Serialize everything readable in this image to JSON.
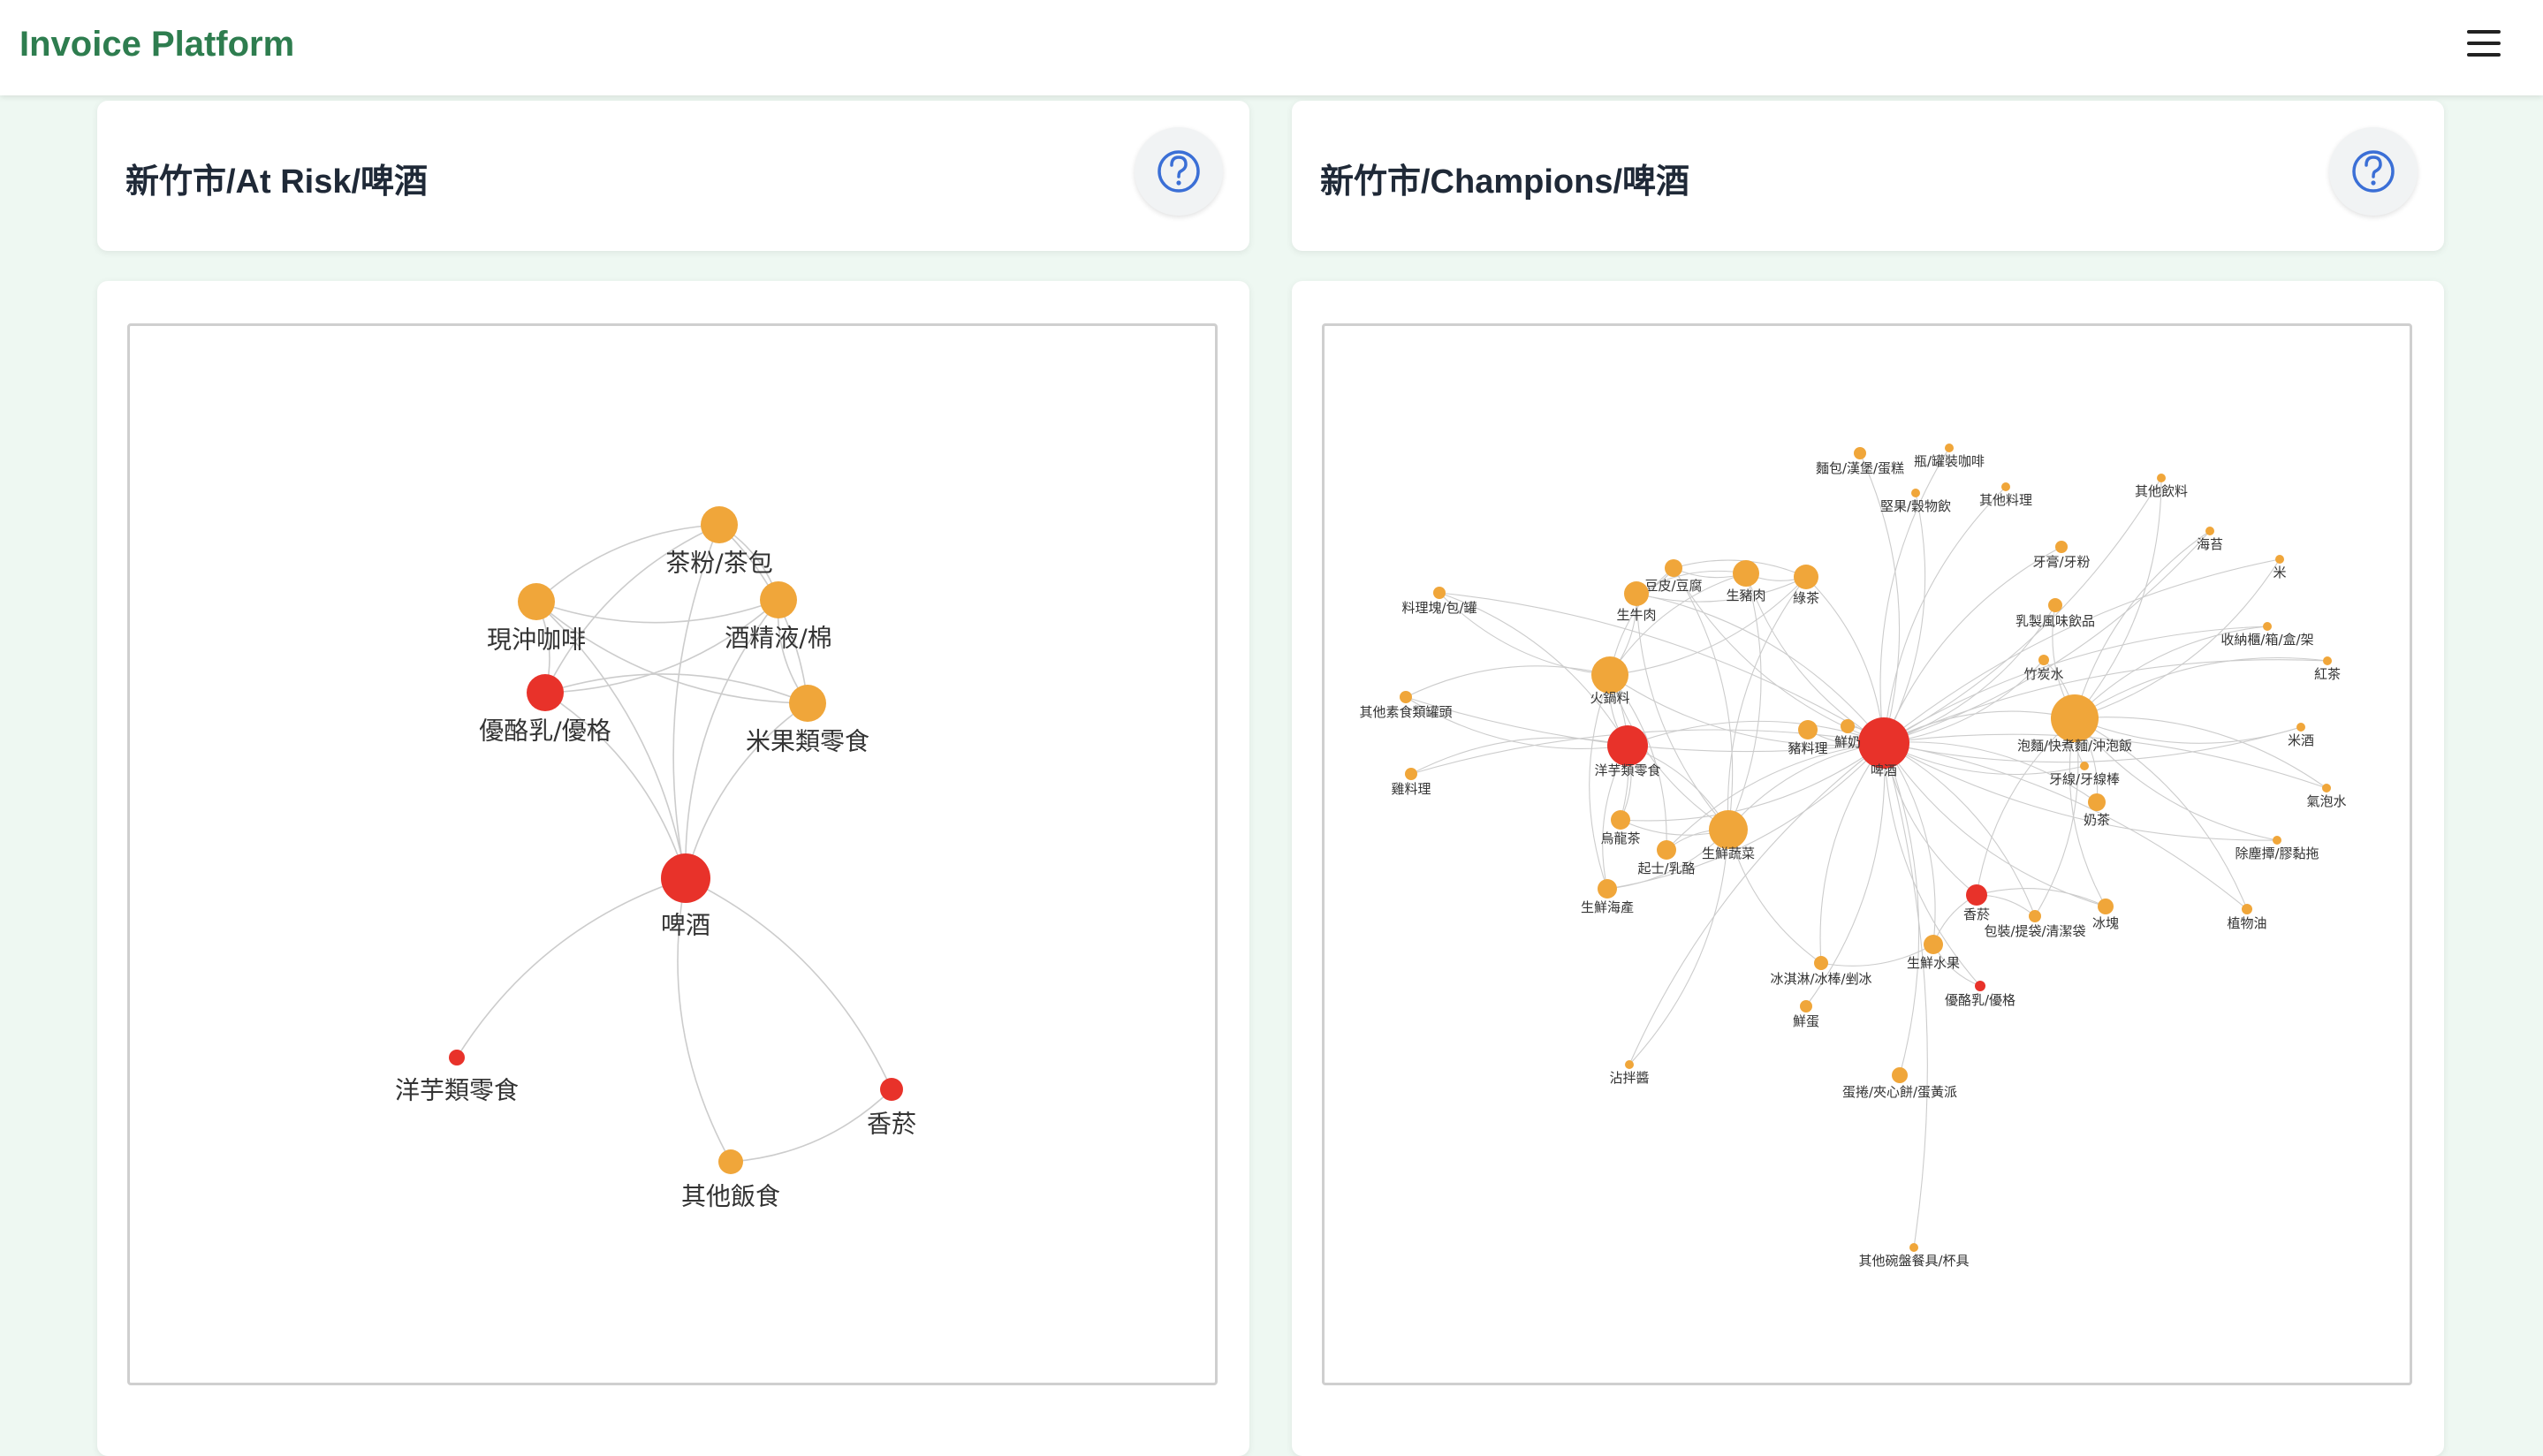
{
  "app": {
    "title": "Invoice Platform"
  },
  "colors": {
    "brand": "#2e7d4f",
    "node_orange": "#f0a63a",
    "node_red": "#e8322a",
    "edge": "#cccccc",
    "background": "#eef8f2"
  },
  "icons": {
    "menu": "hamburger-icon",
    "help": "question-circle-icon"
  },
  "panels": [
    {
      "title": "新竹市/At Risk/啤酒"
    },
    {
      "title": "新竹市/Champions/啤酒"
    }
  ],
  "graphs": [
    {
      "nodes": [
        {
          "label": "茶粉/茶包",
          "color": "orange"
        },
        {
          "label": "現沖咖啡",
          "color": "orange"
        },
        {
          "label": "酒精液/棉",
          "color": "orange"
        },
        {
          "label": "優酪乳/優格",
          "color": "red"
        },
        {
          "label": "米果類零食",
          "color": "orange"
        },
        {
          "label": "啤酒",
          "color": "red"
        },
        {
          "label": "洋芋類零食",
          "color": "red"
        },
        {
          "label": "香菸",
          "color": "red"
        },
        {
          "label": "其他飯食",
          "color": "orange"
        }
      ]
    },
    {
      "nodes": [
        {
          "label": "啤酒",
          "color": "red"
        },
        {
          "label": "泡麵/快煮麵/沖泡飯",
          "color": "orange"
        },
        {
          "label": "生鮮蔬菜",
          "color": "orange"
        },
        {
          "label": "火鍋料",
          "color": "orange"
        },
        {
          "label": "洋芋類零食",
          "color": "red"
        },
        {
          "label": "豆皮/豆腐",
          "color": "orange"
        },
        {
          "label": "生牛肉",
          "color": "orange"
        },
        {
          "label": "生豬肉",
          "color": "orange"
        },
        {
          "label": "綠茶",
          "color": "orange"
        },
        {
          "label": "豬料理",
          "color": "orange"
        },
        {
          "label": "鮮奶",
          "color": "orange"
        },
        {
          "label": "烏龍茶",
          "color": "orange"
        },
        {
          "label": "起士/乳酪",
          "color": "orange"
        },
        {
          "label": "生鮮海產",
          "color": "orange"
        },
        {
          "label": "香菸",
          "color": "red"
        },
        {
          "label": "生鮮水果",
          "color": "orange"
        },
        {
          "label": "冰塊",
          "color": "orange"
        },
        {
          "label": "奶茶",
          "color": "orange"
        },
        {
          "label": "牙線/牙線棒",
          "color": "orange"
        },
        {
          "label": "包裝/提袋/清潔袋",
          "color": "orange"
        },
        {
          "label": "冰淇淋/冰棒/剉冰",
          "color": "orange"
        },
        {
          "label": "鮮蛋",
          "color": "orange"
        },
        {
          "label": "優酪乳/優格",
          "color": "red"
        },
        {
          "label": "蛋捲/夾心餅/蛋黃派",
          "color": "orange"
        },
        {
          "label": "沾拌醬",
          "color": "orange"
        },
        {
          "label": "其他碗盤餐具/杯具",
          "color": "orange"
        },
        {
          "label": "麵包/漢堡/蛋糕",
          "color": "orange"
        },
        {
          "label": "瓶/罐裝咖啡",
          "color": "orange"
        },
        {
          "label": "堅果/穀物飲",
          "color": "orange"
        },
        {
          "label": "其他料理",
          "color": "orange"
        },
        {
          "label": "其他飲料",
          "color": "orange"
        },
        {
          "label": "牙膏/牙粉",
          "color": "orange"
        },
        {
          "label": "海苔",
          "color": "orange"
        },
        {
          "label": "米",
          "color": "orange"
        },
        {
          "label": "乳製風味飲品",
          "color": "orange"
        },
        {
          "label": "收納櫃/箱/盒/架",
          "color": "orange"
        },
        {
          "label": "竹炭水",
          "color": "orange"
        },
        {
          "label": "紅茶",
          "color": "orange"
        },
        {
          "label": "米酒",
          "color": "orange"
        },
        {
          "label": "氣泡水",
          "color": "orange"
        },
        {
          "label": "除塵撢/膠黏拖",
          "color": "orange"
        },
        {
          "label": "植物油",
          "color": "orange"
        },
        {
          "label": "料理塊/包/罐",
          "color": "orange"
        },
        {
          "label": "其他素食類罐頭",
          "color": "orange"
        },
        {
          "label": "雞料理",
          "color": "orange"
        }
      ]
    }
  ]
}
